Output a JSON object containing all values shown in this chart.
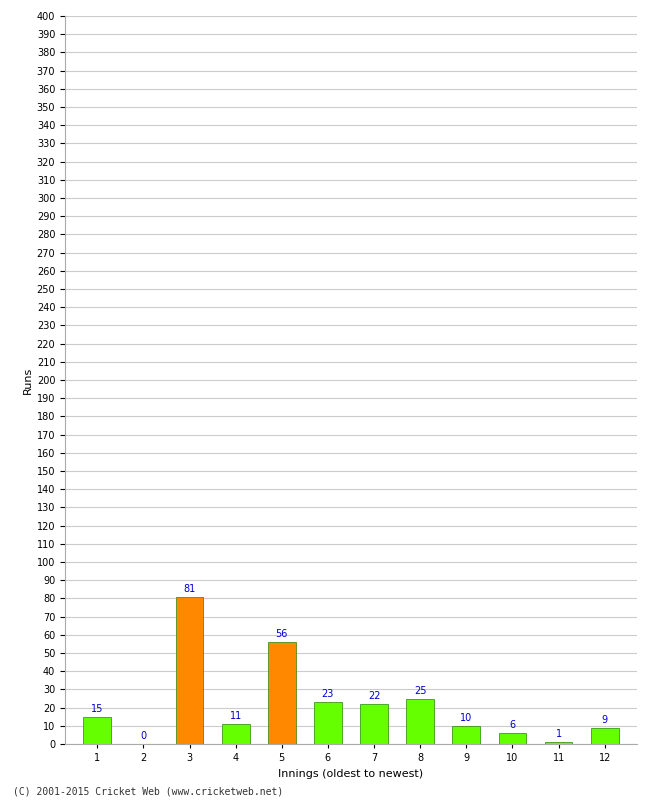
{
  "xlabel": "Innings (oldest to newest)",
  "ylabel": "Runs",
  "values": [
    15,
    0,
    81,
    11,
    56,
    23,
    22,
    25,
    10,
    6,
    1,
    9
  ],
  "innings": [
    1,
    2,
    3,
    4,
    5,
    6,
    7,
    8,
    9,
    10,
    11,
    12
  ],
  "bar_colors": [
    "#66ff00",
    "#66ff00",
    "#ff8800",
    "#66ff00",
    "#ff8800",
    "#66ff00",
    "#66ff00",
    "#66ff00",
    "#66ff00",
    "#66ff00",
    "#66ff00",
    "#66ff00"
  ],
  "ylim": [
    0,
    400
  ],
  "ytick_step": 10,
  "value_label_color": "#0000cc",
  "value_label_fontsize": 7,
  "footer": "(C) 2001-2015 Cricket Web (www.cricketweb.net)",
  "background_color": "#ffffff",
  "grid_color": "#cccccc",
  "bar_edge_color": "#228800",
  "bar_edge_width": 0.5
}
